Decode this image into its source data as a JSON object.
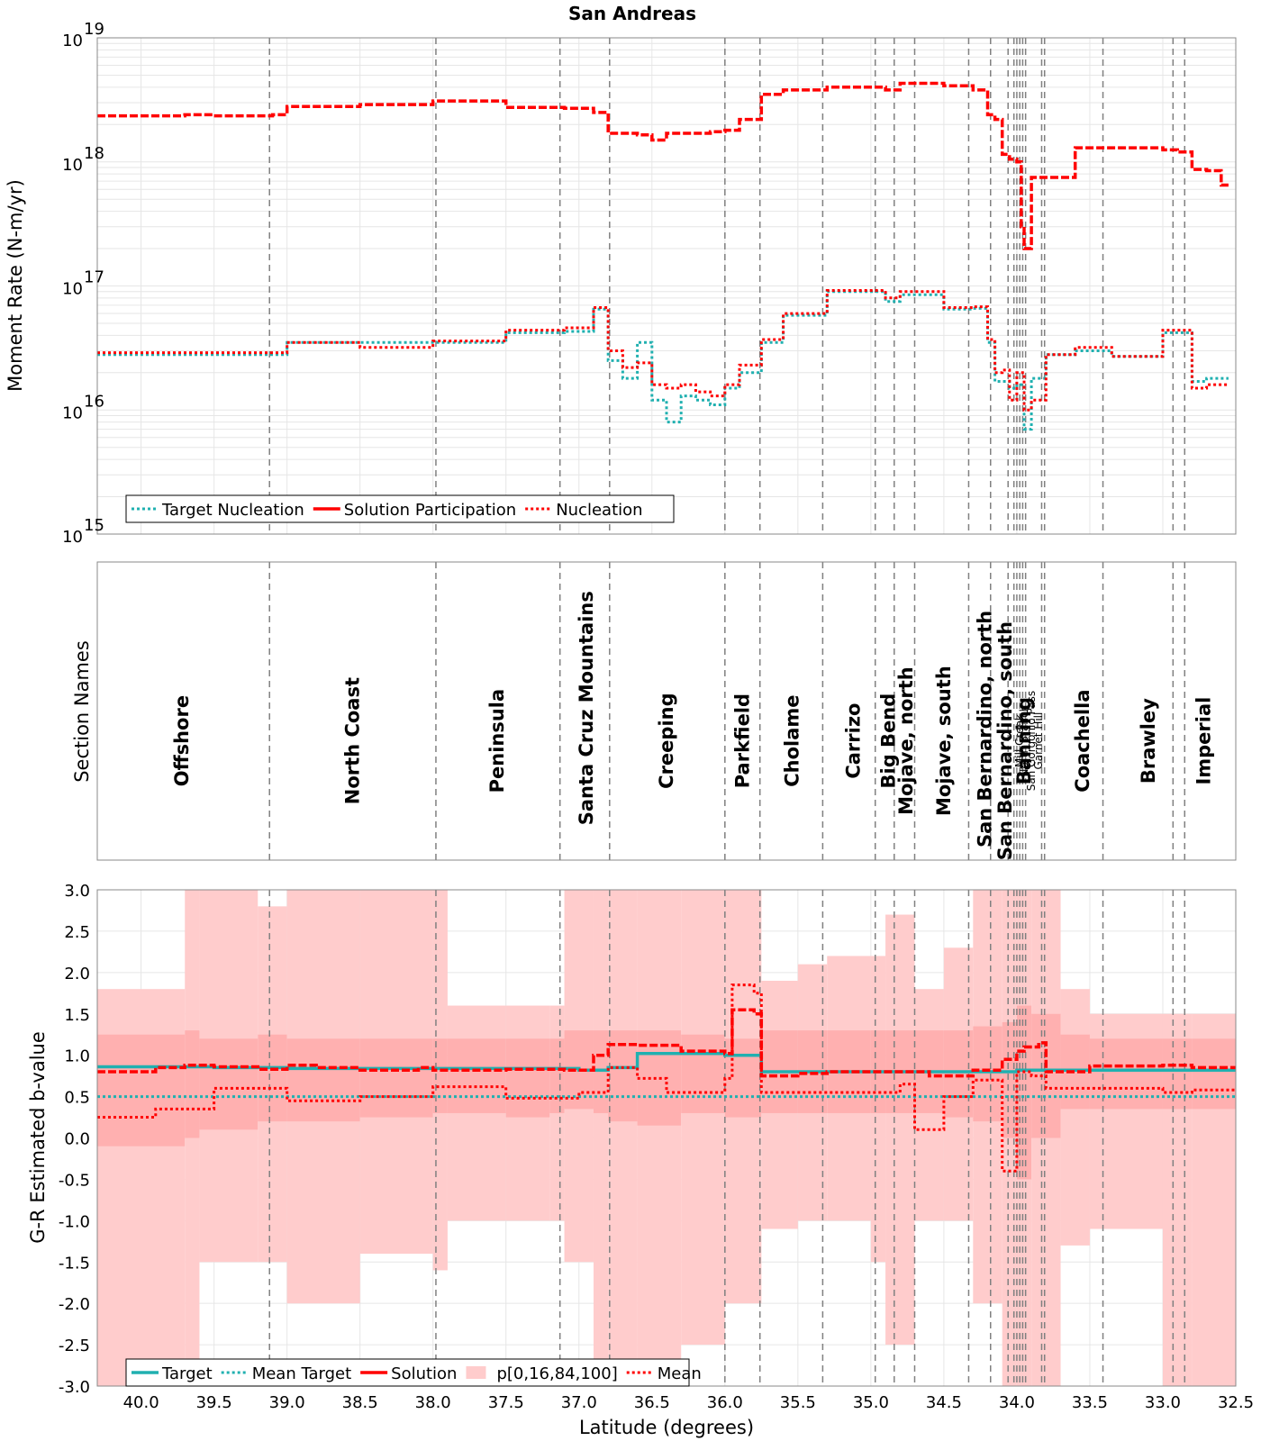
{
  "title": "San Andreas",
  "colors": {
    "target": "#20b0b0",
    "solution": "#ff0000",
    "band": "#ffcccc",
    "band_inner": "#ff9999",
    "grid": "#e6e6e6",
    "divider": "#808080"
  },
  "chart_data": [
    {
      "id": "moment-rate",
      "type": "line",
      "ylabel": "Moment Rate (N-m/yr)",
      "yscale": "log",
      "ylim": [
        1000000000000000.0,
        1e+19
      ],
      "xlim": [
        40.3,
        32.5
      ],
      "x_reversed": true,
      "y_tick_labels": [
        {
          "value": 1000000000000000.0,
          "base": "10",
          "exp": "15"
        },
        {
          "value": 1e+16,
          "base": "10",
          "exp": "16"
        },
        {
          "value": 1e+17,
          "base": "10",
          "exp": "17"
        },
        {
          "value": 1e+18,
          "base": "10",
          "exp": "18"
        },
        {
          "value": 1e+19,
          "base": "10",
          "exp": "19"
        }
      ],
      "legend": {
        "position": "bottom-left",
        "entries": [
          "Target Nucleation",
          "Solution Participation",
          "Nucleation"
        ]
      },
      "series": [
        {
          "name": "Solution Participation",
          "x": [
            40.3,
            39.7,
            39.5,
            39.1,
            39.0,
            38.5,
            38.0,
            37.5,
            37.1,
            36.9,
            36.8,
            36.6,
            36.5,
            36.4,
            36.1,
            36.0,
            35.9,
            35.75,
            35.6,
            35.3,
            35.0,
            34.9,
            34.8,
            34.5,
            34.3,
            34.2,
            34.15,
            34.1,
            34.05,
            34.0,
            33.97,
            33.95,
            33.9,
            33.8,
            33.6,
            33.35,
            33.0,
            32.9,
            32.8,
            32.7,
            32.6,
            32.55
          ],
          "values": [
            2.35e+18,
            2.4e+18,
            2.35e+18,
            2.4e+18,
            2.8e+18,
            2.9e+18,
            3.1e+18,
            2.75e+18,
            2.7e+18,
            2.5e+18,
            1.7e+18,
            1.65e+18,
            1.5e+18,
            1.7e+18,
            1.75e+18,
            1.8e+18,
            2.2e+18,
            3.5e+18,
            3.8e+18,
            4e+18,
            4e+18,
            3.8e+18,
            4.3e+18,
            4.1e+18,
            3.8e+18,
            2.4e+18,
            2.2e+18,
            1.15e+18,
            1.05e+18,
            1e+18,
            3e+17,
            2e+17,
            7.5e+17,
            7.5e+17,
            1.3e+18,
            1.3e+18,
            1.25e+18,
            1.2e+18,
            8.7e+17,
            8.5e+17,
            6.5e+17,
            4.5e+17
          ]
        },
        {
          "name": "Target Nucleation",
          "x": [
            40.3,
            39.7,
            39.5,
            39.1,
            39.0,
            38.5,
            38.0,
            37.5,
            37.1,
            36.9,
            36.8,
            36.7,
            36.6,
            36.5,
            36.4,
            36.3,
            36.2,
            36.1,
            36.0,
            35.9,
            35.75,
            35.6,
            35.3,
            35.0,
            34.9,
            34.8,
            34.5,
            34.3,
            34.2,
            34.15,
            34.1,
            34.05,
            34.0,
            33.95,
            33.9,
            33.8,
            33.6,
            33.35,
            33.0,
            32.9,
            32.8,
            32.7,
            32.6,
            32.55
          ],
          "values": [
            2.8e+16,
            2.8e+16,
            2.8e+16,
            2.8e+16,
            3.5e+16,
            3.5e+16,
            3.5e+16,
            4.2e+16,
            4.3e+16,
            6.5e+16,
            2.5e+16,
            1.8e+16,
            3.5e+16,
            1.2e+16,
            8000000000000000.0,
            1.3e+16,
            1.2e+16,
            1.1e+16,
            1.5e+16,
            2e+16,
            3.5e+16,
            5.8e+16,
            9e+16,
            9e+16,
            7.5e+16,
            8.5e+16,
            6.5e+16,
            6.6e+16,
            3.5e+16,
            1.7e+16,
            1.7e+16,
            1.5e+16,
            1.6e+16,
            7000000000000000.0,
            1.8e+16,
            2.8e+16,
            3e+16,
            2.7e+16,
            4.2e+16,
            4.2e+16,
            1.7e+16,
            1.8e+16,
            1.8e+16,
            8000000000000000.0
          ]
        },
        {
          "name": "Nucleation",
          "x": [
            40.3,
            39.7,
            39.5,
            39.1,
            39.0,
            38.5,
            38.0,
            37.5,
            37.1,
            36.9,
            36.8,
            36.7,
            36.6,
            36.5,
            36.4,
            36.3,
            36.2,
            36.1,
            36.0,
            35.9,
            35.75,
            35.6,
            35.3,
            35.0,
            34.9,
            34.8,
            34.5,
            34.3,
            34.2,
            34.15,
            34.1,
            34.05,
            34.0,
            33.95,
            33.9,
            33.8,
            33.6,
            33.35,
            33.0,
            32.9,
            32.8,
            32.7,
            32.6,
            32.55
          ],
          "values": [
            2.9e+16,
            2.9e+16,
            2.9e+16,
            2.9e+16,
            3.5e+16,
            3.2e+16,
            3.6e+16,
            4.4e+16,
            4.6e+16,
            6.7e+16,
            3e+16,
            2.2e+16,
            2.4e+16,
            1.6e+16,
            1.5e+16,
            1.6e+16,
            1.4e+16,
            1.3e+16,
            1.6e+16,
            2.3e+16,
            3.7e+16,
            6e+16,
            9.2e+16,
            9.2e+16,
            8e+16,
            9e+16,
            6.7e+16,
            6.8e+16,
            3.7e+16,
            2e+16,
            2.1e+16,
            1.2e+16,
            2e+16,
            1e+16,
            1.2e+16,
            2.8e+16,
            3.2e+16,
            2.7e+16,
            4.4e+16,
            4.4e+16,
            1.5e+16,
            1.6e+16,
            1.6e+16,
            7500000000000000.0
          ]
        }
      ]
    },
    {
      "id": "section-names",
      "type": "table",
      "ylabel": "Section Names",
      "sections": [
        {
          "name": "Offshore",
          "x": 39.72,
          "style": "bold",
          "y": 0.6
        },
        {
          "name": "North Coast",
          "x": 38.55,
          "style": "bold",
          "y": 0.6
        },
        {
          "name": "Peninsula",
          "x": 37.56,
          "style": "bold",
          "y": 0.6
        },
        {
          "name": "Santa Cruz Mountains",
          "x": 36.95,
          "style": "bold",
          "y": 0.49
        },
        {
          "name": "Creeping",
          "x": 36.4,
          "style": "bold",
          "y": 0.6
        },
        {
          "name": "Parkfield",
          "x": 35.88,
          "style": "bold",
          "y": 0.6
        },
        {
          "name": "Cholame",
          "x": 35.54,
          "style": "bold",
          "y": 0.6
        },
        {
          "name": "Carrizo",
          "x": 35.12,
          "style": "bold",
          "y": 0.6
        },
        {
          "name": "Big Bend",
          "x": 34.88,
          "style": "bold",
          "y": 0.6
        },
        {
          "name": "Mojave, north",
          "x": 34.76,
          "style": "bold",
          "y": 0.6
        },
        {
          "name": "Mojave, south",
          "x": 34.5,
          "style": "bold",
          "y": 0.6
        },
        {
          "name": "San Bernardino, north",
          "x": 34.22,
          "style": "normal",
          "y": 0.56
        },
        {
          "name": "San Bernardino, south",
          "x": 34.08,
          "style": "bold",
          "y": 0.6
        },
        {
          "name": "Mill Creek",
          "x": 34.0,
          "style": "small",
          "y": 0.6
        },
        {
          "name": "North Branch",
          "x": 33.97,
          "style": "small",
          "y": 0.6
        },
        {
          "name": "San Gorgonio Pass",
          "x": 33.92,
          "style": "small",
          "y": 0.6
        },
        {
          "name": "Banning",
          "x": 33.95,
          "style": "bold",
          "y": 0.6
        },
        {
          "name": "Garnet Hill",
          "x": 33.87,
          "style": "small",
          "y": 0.6
        },
        {
          "name": "Coachella",
          "x": 33.55,
          "style": "bold",
          "y": 0.6
        },
        {
          "name": "Brawley",
          "x": 33.1,
          "style": "bold",
          "y": 0.6
        },
        {
          "name": "Imperial",
          "x": 32.72,
          "style": "bold",
          "y": 0.6
        }
      ]
    },
    {
      "id": "b-value",
      "type": "line",
      "ylabel": "G-R Estimated b-value",
      "xlabel": "Latitude (degrees)",
      "ylim": [
        -3.0,
        3.0
      ],
      "xlim": [
        40.3,
        32.5
      ],
      "x_reversed": true,
      "y_ticks": [
        3.0,
        2.5,
        2.0,
        1.5,
        1.0,
        0.5,
        0.0,
        -0.5,
        -1.0,
        -1.5,
        -2.0,
        -2.5,
        -3.0
      ],
      "y_tick_labels": [
        "3.0",
        "2.5",
        "2.0",
        "1.5",
        "1.0",
        "0.5",
        "0.0",
        "-0.5",
        "-1.0",
        "-1.5",
        "-2.0",
        "-2.5",
        "-3.0"
      ],
      "x_ticks": [
        40.0,
        39.5,
        39.0,
        38.5,
        38.0,
        37.5,
        37.0,
        36.5,
        36.0,
        35.5,
        35.0,
        34.5,
        34.0,
        33.5,
        33.0,
        32.5
      ],
      "x_tick_labels": [
        "40.0",
        "39.5",
        "39.0",
        "38.5",
        "38.0",
        "37.5",
        "37.0",
        "36.5",
        "36.0",
        "35.5",
        "35.0",
        "34.5",
        "34.0",
        "33.5",
        "33.0",
        "32.5"
      ],
      "legend": {
        "position": "bottom-left",
        "entries": [
          "Target",
          "Mean Target",
          "Solution",
          "p[0,16,84,100]",
          "Mean"
        ]
      },
      "series": [
        {
          "name": "Target",
          "x": [
            40.3,
            39.5,
            39.0,
            38.0,
            37.0,
            36.8,
            36.6,
            36.0,
            35.75,
            35.0,
            34.5,
            34.0,
            33.5,
            33.0,
            32.5
          ],
          "values": [
            0.86,
            0.85,
            0.84,
            0.84,
            0.82,
            0.85,
            1.02,
            1.0,
            0.8,
            0.8,
            0.8,
            0.82,
            0.82,
            0.82,
            0.82
          ]
        },
        {
          "name": "Mean Target",
          "x": [
            40.3,
            39.5,
            39.0,
            38.0,
            37.0,
            36.6,
            36.0,
            35.75,
            35.0,
            34.5,
            34.0,
            33.5,
            33.0,
            32.5
          ],
          "values": [
            0.5,
            0.5,
            0.5,
            0.5,
            0.5,
            0.5,
            0.5,
            0.5,
            0.5,
            0.5,
            0.5,
            0.5,
            0.5,
            0.5
          ]
        },
        {
          "name": "Solution",
          "x": [
            40.3,
            39.9,
            39.7,
            39.5,
            39.2,
            39.0,
            38.8,
            38.5,
            38.1,
            38.0,
            37.5,
            37.1,
            36.9,
            36.8,
            36.6,
            36.3,
            36.0,
            35.95,
            35.8,
            35.75,
            35.5,
            35.3,
            35.0,
            34.8,
            34.6,
            34.3,
            34.1,
            34.0,
            33.95,
            33.85,
            33.8,
            33.5,
            33.0,
            32.8,
            32.5
          ],
          "values": [
            0.8,
            0.85,
            0.88,
            0.86,
            0.83,
            0.88,
            0.85,
            0.82,
            0.85,
            0.82,
            0.83,
            0.82,
            1.0,
            1.13,
            1.12,
            1.05,
            1.02,
            1.55,
            1.5,
            0.75,
            0.78,
            0.8,
            0.8,
            0.8,
            0.75,
            0.82,
            0.95,
            1.05,
            1.1,
            1.15,
            0.8,
            0.87,
            0.88,
            0.85,
            0.85
          ]
        },
        {
          "name": "Mean",
          "x": [
            40.3,
            39.9,
            39.5,
            39.0,
            38.5,
            38.0,
            37.5,
            37.0,
            36.8,
            36.6,
            36.4,
            36.0,
            35.95,
            35.8,
            35.75,
            35.5,
            35.0,
            34.8,
            34.7,
            34.5,
            34.3,
            34.1,
            34.0,
            33.9,
            33.8,
            33.5,
            33.0,
            32.8,
            32.5
          ],
          "values": [
            0.25,
            0.35,
            0.6,
            0.45,
            0.5,
            0.62,
            0.48,
            0.55,
            0.85,
            0.72,
            0.55,
            0.72,
            1.85,
            1.75,
            0.55,
            0.55,
            0.55,
            0.65,
            0.1,
            0.5,
            0.7,
            -0.4,
            0.8,
            0.75,
            0.6,
            0.6,
            0.55,
            0.58,
            0.45
          ]
        },
        {
          "name": "p[0,16,84,100]",
          "x": [
            40.3,
            39.7,
            39.6,
            39.2,
            39.0,
            38.5,
            38.0,
            37.9,
            37.5,
            37.2,
            37.1,
            36.9,
            36.8,
            36.6,
            36.3,
            36.0,
            35.75,
            35.5,
            35.3,
            35.0,
            34.9,
            34.7,
            34.5,
            34.3,
            34.1,
            34.0,
            33.9,
            33.7,
            33.5,
            33.0,
            32.8,
            32.5
          ],
          "low": [
            -3.0,
            -3.0,
            -1.5,
            -1.5,
            -2.0,
            -1.4,
            -1.6,
            -1.0,
            -1.0,
            -1.0,
            -1.5,
            -3.0,
            -3.0,
            -3.0,
            -2.5,
            -2.0,
            -1.1,
            -1.0,
            -1.0,
            -1.5,
            -2.5,
            -1.0,
            -1.0,
            -2.0,
            -3.0,
            -3.0,
            -3.0,
            -1.3,
            -1.1,
            -3.0,
            -3.0,
            -3.0
          ],
          "p16": [
            -0.1,
            0.0,
            0.1,
            0.2,
            0.2,
            0.25,
            0.3,
            0.3,
            0.25,
            0.3,
            0.35,
            0.3,
            0.2,
            0.15,
            0.3,
            0.25,
            0.3,
            0.3,
            0.3,
            0.3,
            0.3,
            0.3,
            0.25,
            0.2,
            0.0,
            -0.5,
            0.0,
            0.35,
            0.35,
            0.35,
            0.35,
            0.35
          ],
          "p84": [
            1.25,
            1.3,
            1.2,
            1.25,
            1.2,
            1.2,
            1.2,
            1.2,
            1.2,
            1.2,
            1.3,
            1.3,
            1.3,
            1.3,
            1.25,
            1.2,
            1.3,
            1.3,
            1.3,
            1.3,
            1.3,
            1.3,
            1.3,
            1.35,
            1.4,
            1.6,
            1.5,
            1.25,
            1.2,
            1.2,
            1.2,
            1.2
          ],
          "high": [
            1.8,
            3.0,
            3.0,
            2.8,
            3.0,
            3.0,
            3.0,
            1.6,
            1.6,
            1.6,
            3.0,
            3.0,
            3.0,
            3.0,
            3.0,
            3.0,
            1.9,
            2.1,
            2.2,
            2.2,
            2.7,
            1.8,
            2.3,
            3.0,
            3.0,
            3.0,
            3.0,
            1.8,
            1.5,
            1.5,
            1.5,
            1.5
          ]
        }
      ]
    }
  ],
  "boundaries": [
    39.12,
    37.98,
    37.13,
    36.79,
    36.0,
    35.76,
    35.33,
    34.97,
    34.84,
    34.7,
    34.33,
    34.18,
    34.06,
    34.02,
    34.0,
    33.98,
    33.96,
    33.94,
    33.83,
    33.81,
    33.41,
    32.93,
    32.85
  ]
}
